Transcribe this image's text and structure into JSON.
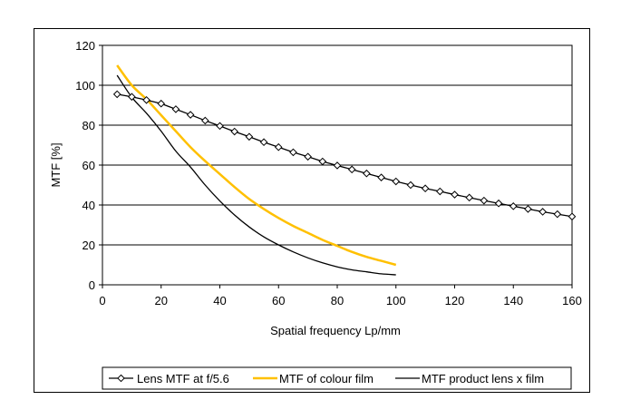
{
  "chart_data": {
    "type": "line",
    "xlabel": "Spatial frequency  Lp/mm",
    "ylabel": "MTF  [%]",
    "xlim": [
      0,
      160
    ],
    "ylim": [
      0,
      120
    ],
    "x_ticks": [
      "0",
      "20",
      "40",
      "60",
      "80",
      "100",
      "120",
      "140",
      "160"
    ],
    "y_ticks": [
      "0",
      "20",
      "40",
      "60",
      "80",
      "100",
      "120"
    ],
    "grid": "horizontal",
    "legend_position": "bottom",
    "series": [
      {
        "name": "Lens MTF at f/5.6",
        "color": "#000000",
        "marker": "diamond-open",
        "x": [
          5,
          10,
          15,
          20,
          25,
          30,
          35,
          40,
          45,
          50,
          55,
          60,
          65,
          70,
          75,
          80,
          85,
          90,
          95,
          100,
          105,
          110,
          115,
          120,
          125,
          130,
          135,
          140,
          145,
          150,
          155,
          160
        ],
        "y": [
          95.5,
          94.2,
          92.6,
          90.8,
          88.0,
          85.2,
          82.3,
          79.6,
          76.8,
          74.2,
          71.5,
          69.0,
          66.4,
          64.2,
          61.8,
          59.8,
          57.8,
          55.8,
          53.8,
          51.8,
          50.0,
          48.3,
          46.8,
          45.2,
          43.7,
          42.2,
          40.8,
          39.4,
          38.0,
          36.6,
          35.4,
          34.2
        ]
      },
      {
        "name": "MTF of colour film",
        "color": "#ffc000",
        "marker": "none",
        "x": [
          5,
          10,
          15,
          20,
          25,
          30,
          35,
          40,
          45,
          50,
          55,
          60,
          65,
          70,
          75,
          80,
          85,
          90,
          95,
          100
        ],
        "y": [
          110,
          100,
          93,
          85,
          77,
          69,
          62,
          55.5,
          49,
          43,
          38,
          33.5,
          29.5,
          26,
          22.5,
          19.5,
          16.5,
          14,
          12,
          10
        ]
      },
      {
        "name": "MTF product lens x film",
        "color": "#000000",
        "marker": "none",
        "x": [
          5,
          10,
          15,
          20,
          25,
          30,
          35,
          40,
          45,
          50,
          55,
          60,
          65,
          70,
          75,
          80,
          85,
          90,
          95,
          100
        ],
        "y": [
          105,
          94,
          86,
          77,
          67,
          59,
          50,
          42,
          35,
          29,
          24,
          20,
          16.5,
          13.5,
          11,
          9,
          7.5,
          6.5,
          5.5,
          5
        ]
      }
    ]
  }
}
